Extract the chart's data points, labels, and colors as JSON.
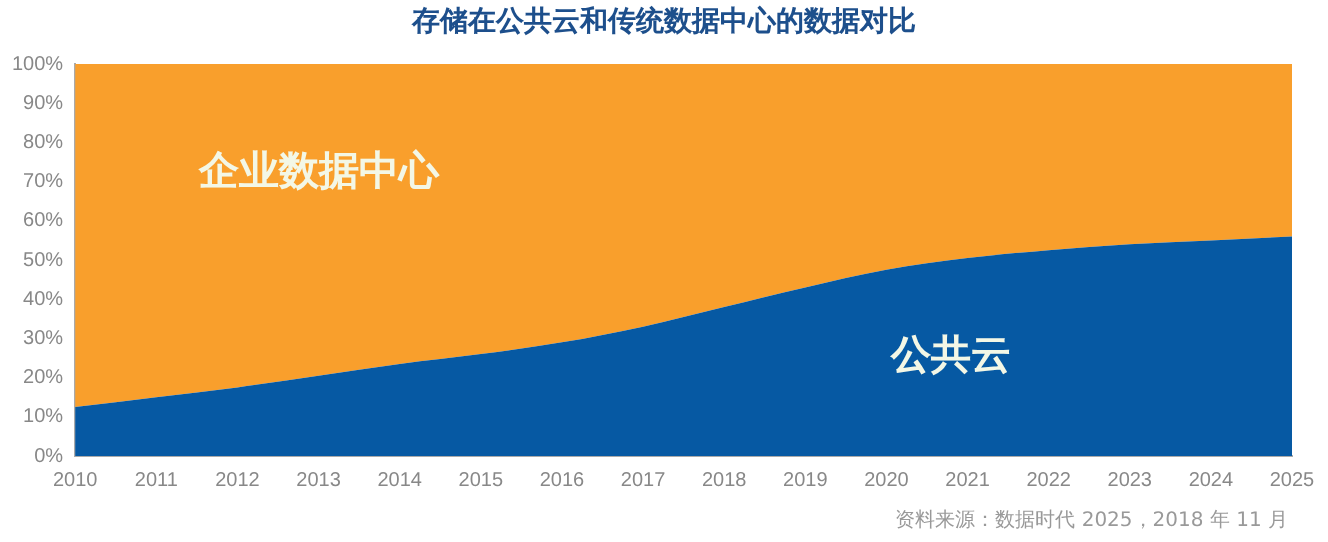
{
  "chart_data": {
    "type": "area",
    "stacked": true,
    "title": "存储在公共云和传统数据中心的数据对比",
    "categories": [
      "2010",
      "2011",
      "2012",
      "2013",
      "2014",
      "2015",
      "2016",
      "2017",
      "2018",
      "2019",
      "2020",
      "2021",
      "2022",
      "2023",
      "2024",
      "2025"
    ],
    "series": [
      {
        "name": "公共云",
        "color": "#0659a3",
        "values": [
          12.5,
          15,
          17.5,
          20.5,
          23.5,
          26,
          29,
          33,
          38,
          43,
          47.5,
          50.5,
          52.5,
          54,
          55,
          56
        ]
      },
      {
        "name": "企业数据中心",
        "color": "#f99f2c",
        "values": [
          87.5,
          85,
          82.5,
          79.5,
          76.5,
          74,
          71,
          67,
          62,
          57,
          52.5,
          49.5,
          47.5,
          46,
          45,
          44
        ]
      }
    ],
    "ylim": [
      0,
      100
    ],
    "yticks": [
      {
        "value": 0,
        "label": "0%"
      },
      {
        "value": 10,
        "label": "10%"
      },
      {
        "value": 20,
        "label": "20%"
      },
      {
        "value": 30,
        "label": "30%"
      },
      {
        "value": 40,
        "label": "40%"
      },
      {
        "value": 50,
        "label": "50%"
      },
      {
        "value": 60,
        "label": "60%"
      },
      {
        "value": 70,
        "label": "70%"
      },
      {
        "value": 80,
        "label": "80%"
      },
      {
        "value": 90,
        "label": "90%"
      },
      {
        "value": 100,
        "label": "100%"
      }
    ],
    "grid": false,
    "legend": false,
    "annotations": [
      "资料来源：数据时代 2025，2018 年 11 月"
    ]
  }
}
